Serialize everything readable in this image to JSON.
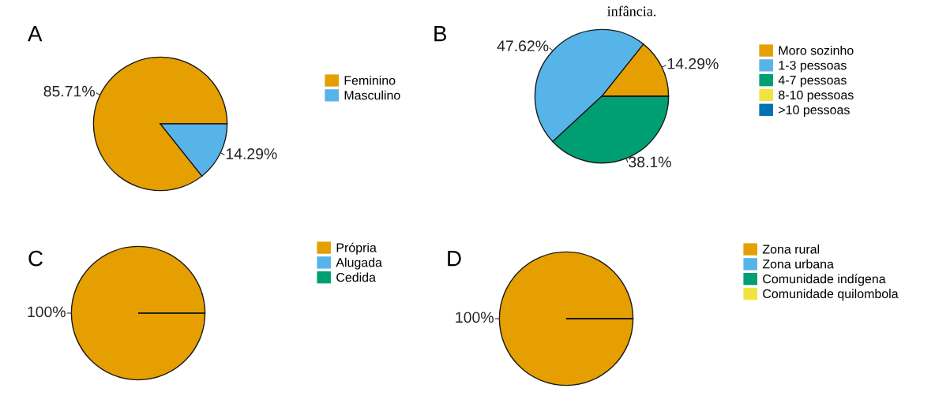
{
  "chart_data": [
    {
      "type": "pie",
      "title": "A",
      "categories": [
        "Feminino",
        "Masculino"
      ],
      "values": [
        85.71,
        14.29
      ],
      "colors": [
        "#e69f00",
        "#56b4e9"
      ],
      "value_labels": [
        "85.71%",
        "14.29%"
      ],
      "legend": "right"
    },
    {
      "type": "pie",
      "title": "B",
      "categories": [
        "Moro sozinho",
        "1-3 pessoas",
        "4-7 pessoas",
        "8-10 pessoas",
        ">10 pessoas"
      ],
      "values": [
        14.29,
        47.62,
        38.1,
        0,
        0
      ],
      "colors": [
        "#e69f00",
        "#56b4e9",
        "#009e73",
        "#f0e442",
        "#0072b2"
      ],
      "value_labels": [
        "14.29%",
        "47.62%",
        "38.1%",
        null,
        null
      ],
      "legend": "right",
      "annotations": [
        "infância."
      ]
    },
    {
      "type": "pie",
      "title": "C",
      "categories": [
        "Própria",
        "Alugada",
        "Cedida"
      ],
      "values": [
        100,
        0,
        0
      ],
      "colors": [
        "#e69f00",
        "#56b4e9",
        "#009e73"
      ],
      "value_labels": [
        "100%",
        null,
        null
      ],
      "legend": "right"
    },
    {
      "type": "pie",
      "title": "D",
      "categories": [
        "Zona rural",
        "Zona urbana",
        "Comunidade indígena",
        "Comunidade quilombola"
      ],
      "values": [
        100,
        0,
        0,
        0
      ],
      "colors": [
        "#e69f00",
        "#56b4e9",
        "#009e73",
        "#f0e442"
      ],
      "value_labels": [
        "100%",
        null,
        null,
        null
      ],
      "legend": "right"
    }
  ]
}
